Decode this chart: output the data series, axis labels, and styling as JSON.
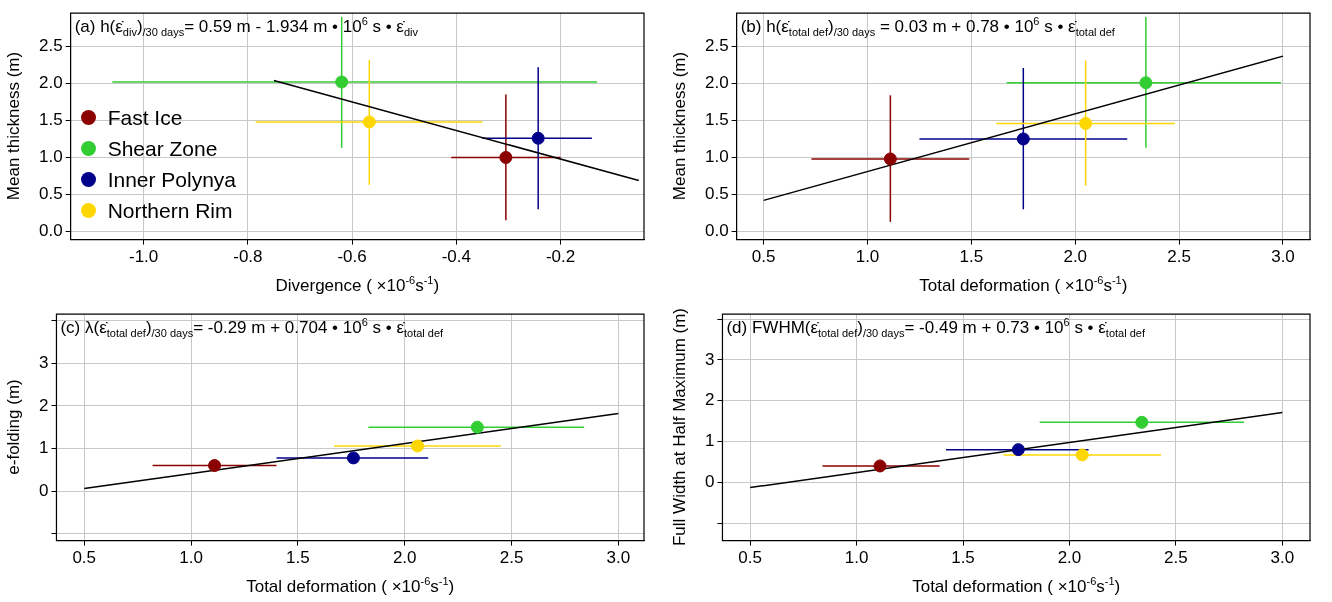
{
  "chart_data": [
    {
      "type": "scatter",
      "title": "(a) h(ε̇$_{div}$)$_{/30 days}$= 0.59 m - 1.934 m • 10$^{6}$ s • ε̇$_{div}$",
      "xlabel": "Divergence ( ×10$^{-6}$s$^{-1}$)",
      "ylabel": "Mean thickness  (m)",
      "xlim": [
        -1.14,
        -0.04
      ],
      "xticks": [
        {
          "value": -1,
          "label": "-1.0"
        },
        -0.8,
        -0.6,
        -0.4,
        -0.2
      ],
      "ylim": [
        -0.11,
        2.95
      ],
      "yticks": [
        {
          "value": 0,
          "label": "0.0"
        },
        0.5,
        {
          "value": 1,
          "label": "1.0"
        },
        1.5,
        {
          "value": 2,
          "label": "2.0"
        },
        2.5
      ],
      "grid": true,
      "legend": "left",
      "series": [
        {
          "name": "Fast Ice",
          "color": "#8b0000",
          "marker": "circle",
          "x": [
            -0.305
          ],
          "values": [
            1.0
          ],
          "xerrors": [
            [
              -0.41,
              -0.2
            ]
          ],
          "errors": [
            [
              0.15,
              1.85
            ]
          ]
        },
        {
          "name": "Shear Zone",
          "color": "#32cd32",
          "marker": "circle",
          "x": [
            -0.62
          ],
          "values": [
            2.02
          ],
          "xerrors": [
            [
              -1.06,
              -0.13
            ]
          ],
          "errors": [
            [
              1.13,
              2.9
            ]
          ]
        },
        {
          "name": "Inner Polynya",
          "color": "#00008b",
          "marker": "circle",
          "x": [
            -0.243
          ],
          "values": [
            1.26
          ],
          "xerrors": [
            [
              -0.35,
              -0.14
            ]
          ],
          "errors": [
            [
              0.3,
              2.22
            ]
          ]
        },
        {
          "name": "Northern Rim",
          "color": "#ffd700",
          "marker": "circle",
          "x": [
            -0.567
          ],
          "values": [
            1.48
          ],
          "xerrors": [
            [
              -0.785,
              -0.35
            ]
          ],
          "errors": [
            [
              0.63,
              2.32
            ]
          ]
        },
        {
          "type": "line",
          "color": "#000000",
          "marker": "none",
          "x": [
            -0.75,
            -0.05
          ],
          "values": [
            2.04,
            0.69
          ]
        }
      ]
    },
    {
      "type": "scatter",
      "title": "(b) h(ε̇$_{total def}$)$_{/30 days}$ = 0.03 m + 0.78 • 10$^{6}$ s • ε̇$_{total def}$",
      "xlabel": "Total deformation ( ×10$^{-6}$s$^{-1}$)",
      "ylabel": "Mean thickness (m)",
      "xlim": [
        0.37,
        3.13
      ],
      "xticks": [
        0.5,
        {
          "value": 1,
          "label": "1.0"
        },
        1.5,
        {
          "value": 2,
          "label": "2.0"
        },
        2.5,
        {
          "value": 3,
          "label": "3.0"
        }
      ],
      "ylim": [
        -0.11,
        2.95
      ],
      "yticks": [
        {
          "value": 0,
          "label": "0.0"
        },
        0.5,
        {
          "value": 1,
          "label": "1.0"
        },
        1.5,
        {
          "value": 2,
          "label": "2.0"
        },
        2.5
      ],
      "grid": true,
      "series": [
        {
          "color": "#8b0000",
          "marker": "circle",
          "x": [
            1.11
          ],
          "values": [
            0.98
          ],
          "xerrors": [
            [
              0.73,
              1.49
            ]
          ],
          "errors": [
            [
              0.13,
              1.84
            ]
          ]
        },
        {
          "color": "#32cd32",
          "marker": "circle",
          "x": [
            2.34
          ],
          "values": [
            2.01
          ],
          "xerrors": [
            [
              1.67,
              2.99
            ]
          ],
          "errors": [
            [
              1.13,
              2.9
            ]
          ]
        },
        {
          "color": "#00008b",
          "marker": "circle",
          "x": [
            1.75
          ],
          "values": [
            1.25
          ],
          "xerrors": [
            [
              1.25,
              2.25
            ]
          ],
          "errors": [
            [
              0.3,
              2.21
            ]
          ]
        },
        {
          "color": "#ffd700",
          "marker": "circle",
          "x": [
            2.05
          ],
          "values": [
            1.46
          ],
          "xerrors": [
            [
              1.62,
              2.48
            ]
          ],
          "errors": [
            [
              0.62,
              2.31
            ]
          ]
        },
        {
          "type": "line",
          "color": "#000000",
          "marker": "none",
          "x": [
            0.5,
            3.0
          ],
          "values": [
            0.42,
            2.37
          ]
        }
      ]
    },
    {
      "type": "scatter",
      "title": "(c) λ(ε̇$_{total def}$)$_{/30 days}$= -0.29 m + 0.704 • 10$^{6}$ s • ε̇$_{total def}$",
      "xlabel": "Total deformation ( ×10$^{-6}$s$^{-1}$)",
      "ylabel": "e-folding (m)",
      "xlim": [
        0.37,
        3.12
      ],
      "xticks": [
        0.5,
        {
          "value": 1,
          "label": "1.0"
        },
        1.5,
        {
          "value": 2,
          "label": "2.0"
        },
        2.5,
        {
          "value": 3,
          "label": "3.0"
        }
      ],
      "ylim": [
        -1.16,
        4.15
      ],
      "yticks": [
        {
          "value": -1,
          "label": null
        },
        0,
        1,
        2,
        3,
        {
          "value": 4,
          "label": null
        }
      ],
      "grid": true,
      "series": [
        {
          "color": "#8b0000",
          "marker": "circle",
          "x": [
            1.11
          ],
          "values": [
            0.6
          ],
          "xerrors": [
            [
              0.82,
              1.4
            ]
          ]
        },
        {
          "color": "#32cd32",
          "marker": "circle",
          "x": [
            2.34
          ],
          "values": [
            1.5
          ],
          "xerrors": [
            [
              1.83,
              2.84
            ]
          ]
        },
        {
          "color": "#00008b",
          "marker": "circle",
          "x": [
            1.76
          ],
          "values": [
            0.78
          ],
          "xerrors": [
            [
              1.4,
              2.11
            ]
          ]
        },
        {
          "color": "#ffd700",
          "marker": "circle",
          "x": [
            2.06
          ],
          "values": [
            1.06
          ],
          "xerrors": [
            [
              1.67,
              2.45
            ]
          ]
        },
        {
          "type": "line",
          "color": "#000000",
          "marker": "none",
          "x": [
            0.5,
            3.0
          ],
          "values": [
            0.06,
            1.82
          ]
        }
      ]
    },
    {
      "type": "scatter",
      "title": "(d) FWHM(ε̇$_{total def}$)$_{/30 days}$= -0.49 m + 0.73 • 10$^{6}$ s • ε̇$_{total def}$",
      "xlabel": "Total deformation ( ×10$^{-6}$s$^{-1}$)",
      "ylabel": "Full Width at Half Maximum (m)",
      "xlim": [
        0.37,
        3.13
      ],
      "xticks": [
        0.5,
        {
          "value": 1,
          "label": "1.0"
        },
        1.5,
        {
          "value": 2,
          "label": "2.0"
        },
        2.5,
        {
          "value": 3,
          "label": "3.0"
        }
      ],
      "ylim": [
        -1.43,
        4.12
      ],
      "yticks": [
        {
          "value": -1,
          "label": null
        },
        0,
        1,
        2,
        3,
        {
          "value": 4,
          "label": null
        }
      ],
      "grid": true,
      "series": [
        {
          "color": "#8b0000",
          "marker": "circle",
          "x": [
            1.11
          ],
          "values": [
            0.4
          ],
          "xerrors": [
            [
              0.84,
              1.39
            ]
          ]
        },
        {
          "color": "#32cd32",
          "marker": "circle",
          "x": [
            2.34
          ],
          "values": [
            1.47
          ],
          "xerrors": [
            [
              1.86,
              2.82
            ]
          ]
        },
        {
          "color": "#00008b",
          "marker": "circle",
          "x": [
            1.76
          ],
          "values": [
            0.8
          ],
          "xerrors": [
            [
              1.42,
              2.09
            ]
          ]
        },
        {
          "color": "#ffd700",
          "marker": "circle",
          "x": [
            2.06
          ],
          "values": [
            0.67
          ],
          "xerrors": [
            [
              1.69,
              2.43
            ]
          ]
        },
        {
          "type": "line",
          "color": "#000000",
          "marker": "none",
          "x": [
            0.5,
            3.0
          ],
          "values": [
            -0.13,
            1.71
          ]
        }
      ]
    }
  ]
}
